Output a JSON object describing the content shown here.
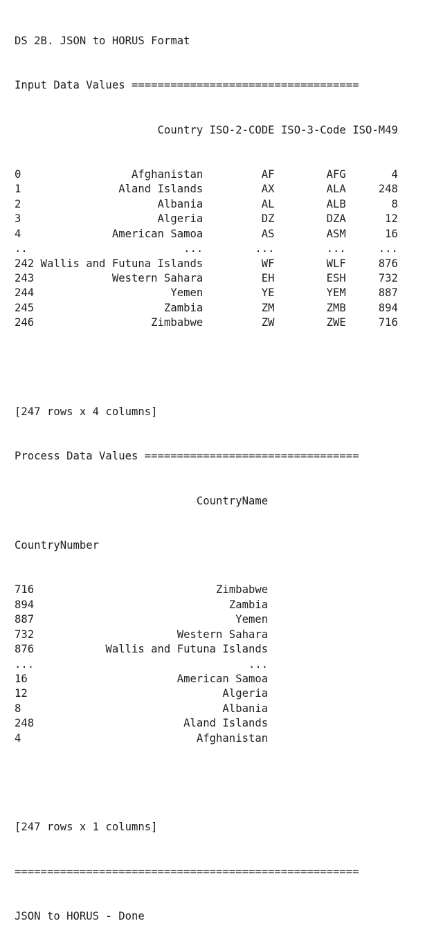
{
  "console": {
    "title": "DS 2B. JSON to HORUS Format",
    "input_header": "Input Data Values ===================================",
    "input_table": {
      "columns": [
        "Country",
        "ISO-2-CODE",
        "ISO-3-Code",
        "ISO-M49"
      ],
      "rows": [
        {
          "index": "0",
          "Country": "Afghanistan",
          "ISO-2-CODE": "AF",
          "ISO-3-Code": "AFG",
          "ISO-M49": "4"
        },
        {
          "index": "1",
          "Country": "Aland Islands",
          "ISO-2-CODE": "AX",
          "ISO-3-Code": "ALA",
          "ISO-M49": "248"
        },
        {
          "index": "2",
          "Country": "Albania",
          "ISO-2-CODE": "AL",
          "ISO-3-Code": "ALB",
          "ISO-M49": "8"
        },
        {
          "index": "3",
          "Country": "Algeria",
          "ISO-2-CODE": "DZ",
          "ISO-3-Code": "DZA",
          "ISO-M49": "12"
        },
        {
          "index": "4",
          "Country": "American Samoa",
          "ISO-2-CODE": "AS",
          "ISO-3-Code": "ASM",
          "ISO-M49": "16"
        },
        {
          "index": "..",
          "Country": "...",
          "ISO-2-CODE": "...",
          "ISO-3-Code": "...",
          "ISO-M49": "..."
        },
        {
          "index": "242",
          "Country": "Wallis and Futuna Islands",
          "ISO-2-CODE": "WF",
          "ISO-3-Code": "WLF",
          "ISO-M49": "876"
        },
        {
          "index": "243",
          "Country": "Western Sahara",
          "ISO-2-CODE": "EH",
          "ISO-3-Code": "ESH",
          "ISO-M49": "732"
        },
        {
          "index": "244",
          "Country": "Yemen",
          "ISO-2-CODE": "YE",
          "ISO-3-Code": "YEM",
          "ISO-M49": "887"
        },
        {
          "index": "245",
          "Country": "Zambia",
          "ISO-2-CODE": "ZM",
          "ISO-3-Code": "ZMB",
          "ISO-M49": "894"
        },
        {
          "index": "246",
          "Country": "Zimbabwe",
          "ISO-2-CODE": "ZW",
          "ISO-3-Code": "ZWE",
          "ISO-M49": "716"
        }
      ],
      "summary": "[247 rows x 4 columns]"
    },
    "process_header": "Process Data Values =================================",
    "process_table": {
      "column": "CountryName",
      "index_name": "CountryNumber",
      "rows": [
        {
          "index": "716",
          "CountryName": "Zimbabwe"
        },
        {
          "index": "894",
          "CountryName": "Zambia"
        },
        {
          "index": "887",
          "CountryName": "Yemen"
        },
        {
          "index": "732",
          "CountryName": "Western Sahara"
        },
        {
          "index": "876",
          "CountryName": "Wallis and Futuna Islands"
        },
        {
          "index": "...",
          "CountryName": "..."
        },
        {
          "index": "16",
          "CountryName": "American Samoa"
        },
        {
          "index": "12",
          "CountryName": "Algeria"
        },
        {
          "index": "8",
          "CountryName": "Albania"
        },
        {
          "index": "248",
          "CountryName": "Aland Islands"
        },
        {
          "index": "4",
          "CountryName": "Afghanistan"
        }
      ],
      "summary": "[247 rows x 1 columns]"
    },
    "footer_rule": "=====================================================",
    "done": "JSON to HORUS - Done"
  }
}
